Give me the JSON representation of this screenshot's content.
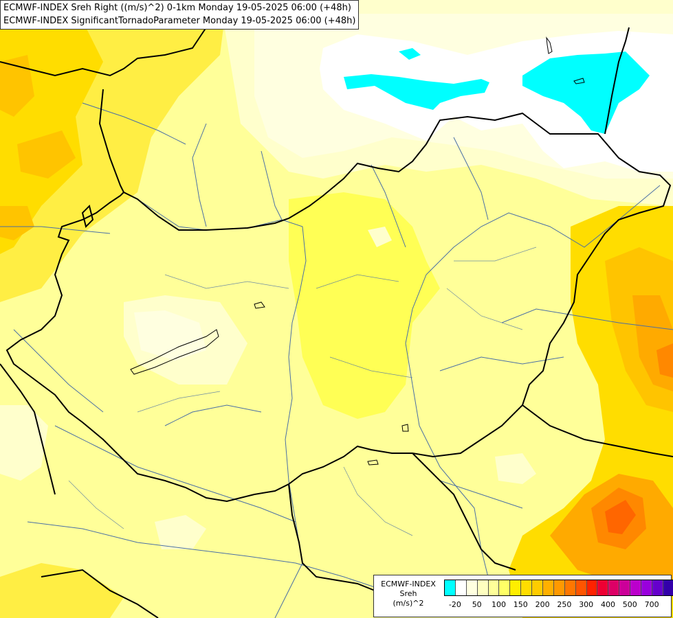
{
  "title": {
    "line1": "ECMWF-INDEX Sreh Right ((m/s)^2) 0-1km Monday 19-05-2025 06:00 (+48h)",
    "line2": "ECMWF-INDEX SignificantTornadoParameter Monday 19-05-2025 06:00 (+48h)"
  },
  "legend": {
    "label_line1": "ECMWF-INDEX",
    "label_line2": "Sreh",
    "label_line3": "(m/s)^2",
    "colors": [
      "#00ffff",
      "#ffffff",
      "#ffffe0",
      "#ffffc0",
      "#ffff99",
      "#ffff66",
      "#ffee00",
      "#ffdd00",
      "#ffcc00",
      "#ffb000",
      "#ff9900",
      "#ff7700",
      "#ff5500",
      "#ff2200",
      "#ee0033",
      "#dd0066",
      "#cc0099",
      "#bb00cc",
      "#9900dd",
      "#6600cc",
      "#3300aa",
      "#000088"
    ],
    "ticks": [
      "-20",
      "50",
      "100",
      "150",
      "200",
      "250",
      "300",
      "400",
      "500",
      "700"
    ]
  },
  "map": {
    "colors": {
      "base": "#ffff99",
      "light": "#ffffcc",
      "paler": "#ffffe0",
      "yellow": "#ffff55",
      "gold": "#ffdd00",
      "orange": "#ffbb00",
      "deep_orange": "#ff9900",
      "red_orange": "#ff6600",
      "white": "#ffffff",
      "cyan": "#00ffff",
      "border": "#000000",
      "river": "#4a6fa5"
    }
  }
}
